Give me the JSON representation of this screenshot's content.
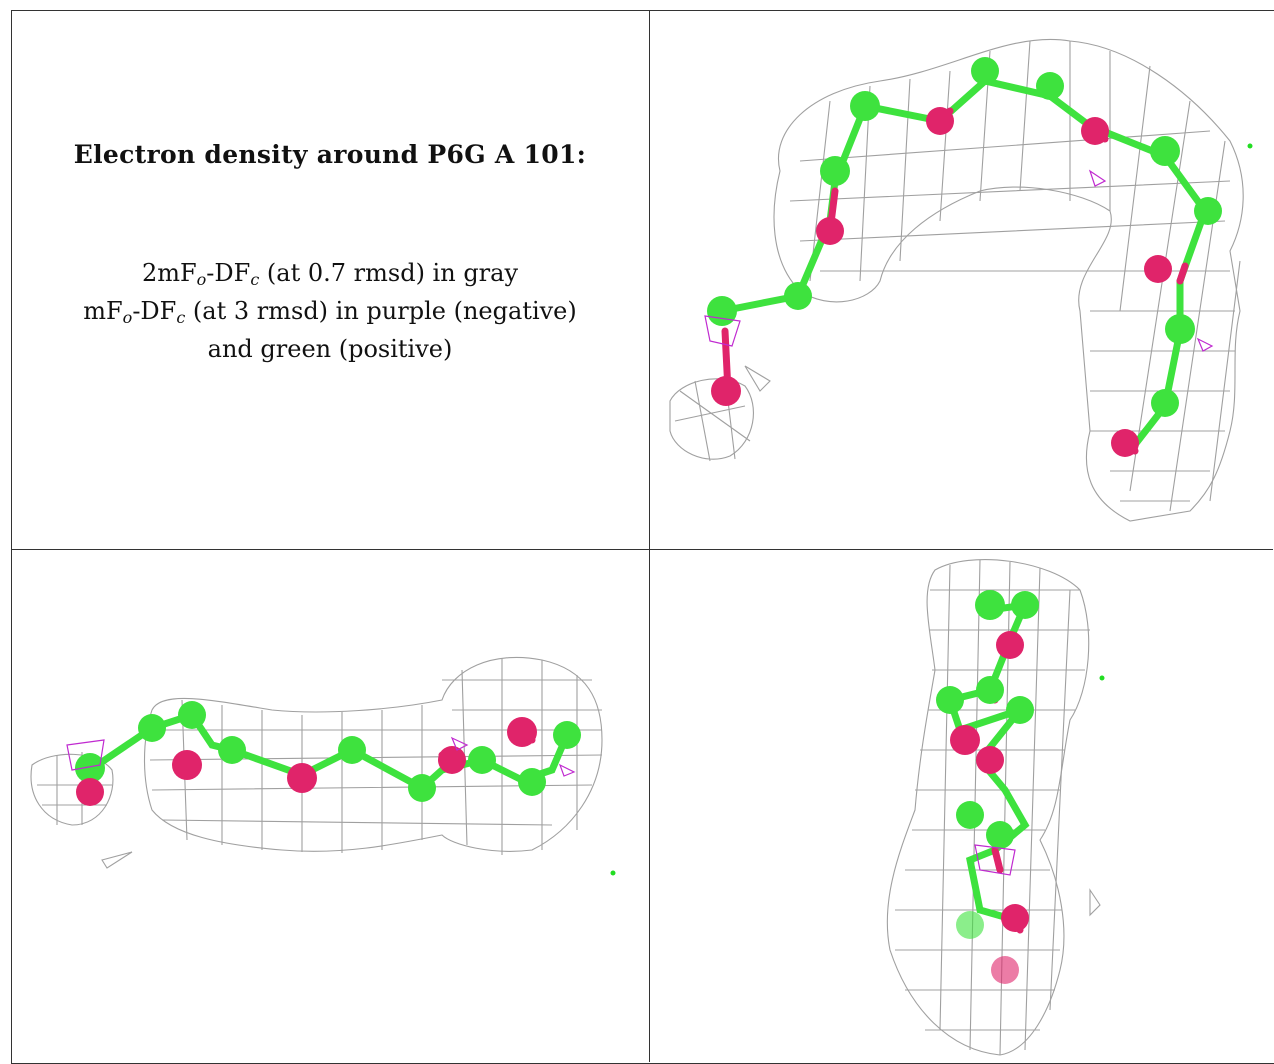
{
  "caption": {
    "title": "Electron density around P6G A 101:",
    "line1": {
      "prefix": "2mF",
      "sub1": "o",
      "mid": "-DF",
      "sub2": "c",
      "suffix": " (at 0.7 rmsd) in gray"
    },
    "line2": {
      "prefix": "mF",
      "sub1": "o",
      "mid": "-DF",
      "sub2": "c",
      "suffix": " (at 3 rmsd) in purple (negative)"
    },
    "line3": "and green (positive)"
  },
  "colors": {
    "mesh": "#9a9a9a",
    "carbon": "#3ee23e",
    "oxygen": "#e0246a",
    "negative_density": "#c02ad0",
    "positive_density": "#22dd22",
    "border": "#333333"
  },
  "panels": [
    {
      "id": "top-right",
      "view": "front",
      "ligand": "P6G A 101"
    },
    {
      "id": "bottom-left",
      "view": "side",
      "ligand": "P6G A 101"
    },
    {
      "id": "bottom-right",
      "view": "top",
      "ligand": "P6G A 101"
    }
  ]
}
